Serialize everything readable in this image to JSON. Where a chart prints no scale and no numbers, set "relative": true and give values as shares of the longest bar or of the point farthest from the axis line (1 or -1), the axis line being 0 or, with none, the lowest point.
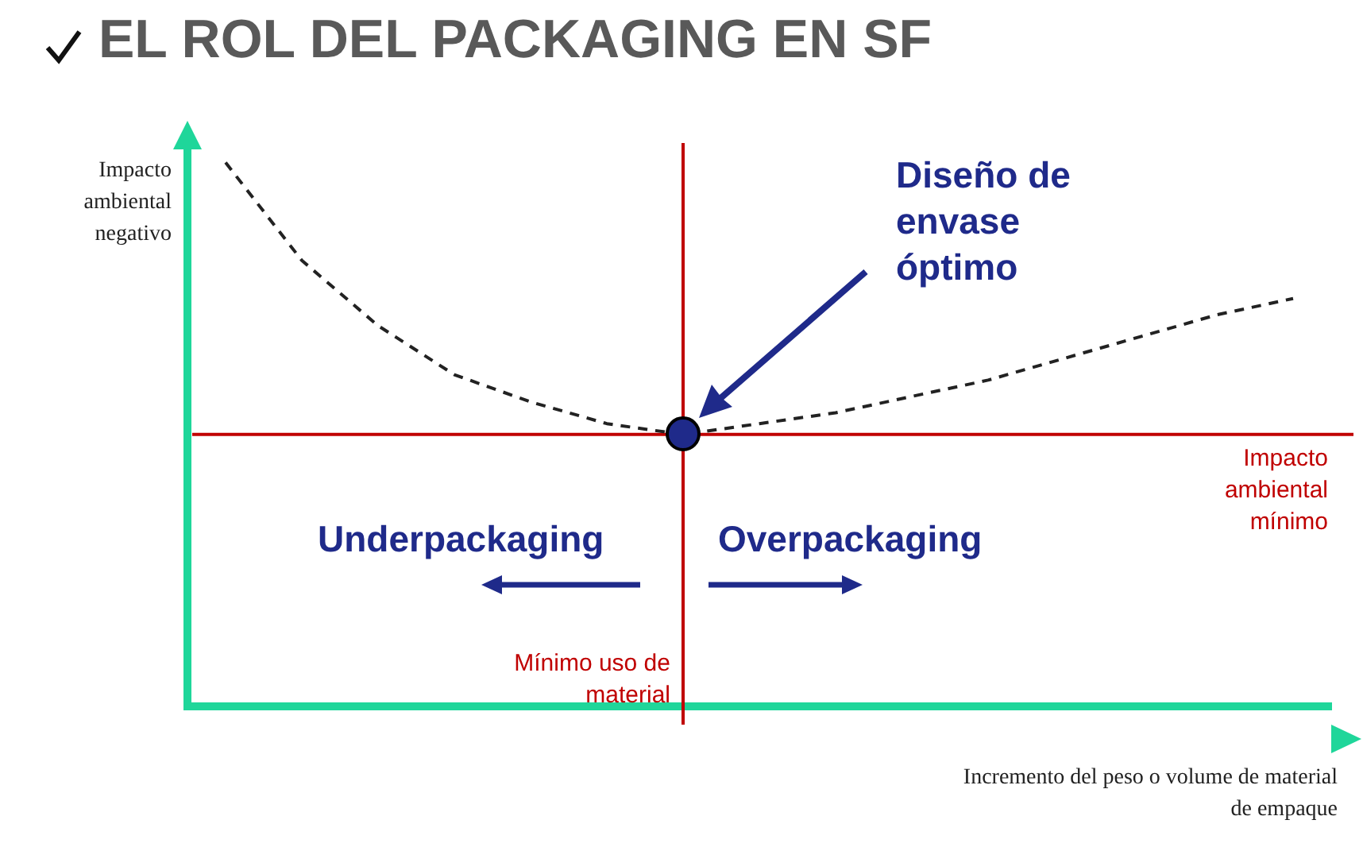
{
  "chart_data": {
    "type": "line",
    "title": "EL ROL DEL PACKAGING EN SF",
    "xlabel": "Incremento del peso o volume de material de empaque",
    "ylabel": "Impacto ambiental negativo",
    "relative": true,
    "legend": false,
    "categories": [
      null,
      null,
      null,
      null,
      null,
      null,
      null,
      null,
      null,
      null,
      null,
      null,
      null,
      null,
      null
    ],
    "series": [
      {
        "color": "#222222",
        "line_style": "dashed",
        "marker": "none",
        "values": [
          1,
          0.82,
          0.7,
          0.61,
          0.56,
          0.52,
          0.5,
          0.52,
          0.54,
          0.57,
          0.6,
          0.64,
          0.68,
          0.72,
          0.75
        ]
      }
    ],
    "ref_lines": [
      {
        "axis": "y",
        "value": 0.5,
        "label": "Impacto ambiental mínimo",
        "color": "#c00000"
      }
    ],
    "annotations": [
      "Diseño de envase óptimo",
      "Underpackaging",
      "Overpackaging",
      "Mínimo uso de material"
    ]
  }
}
